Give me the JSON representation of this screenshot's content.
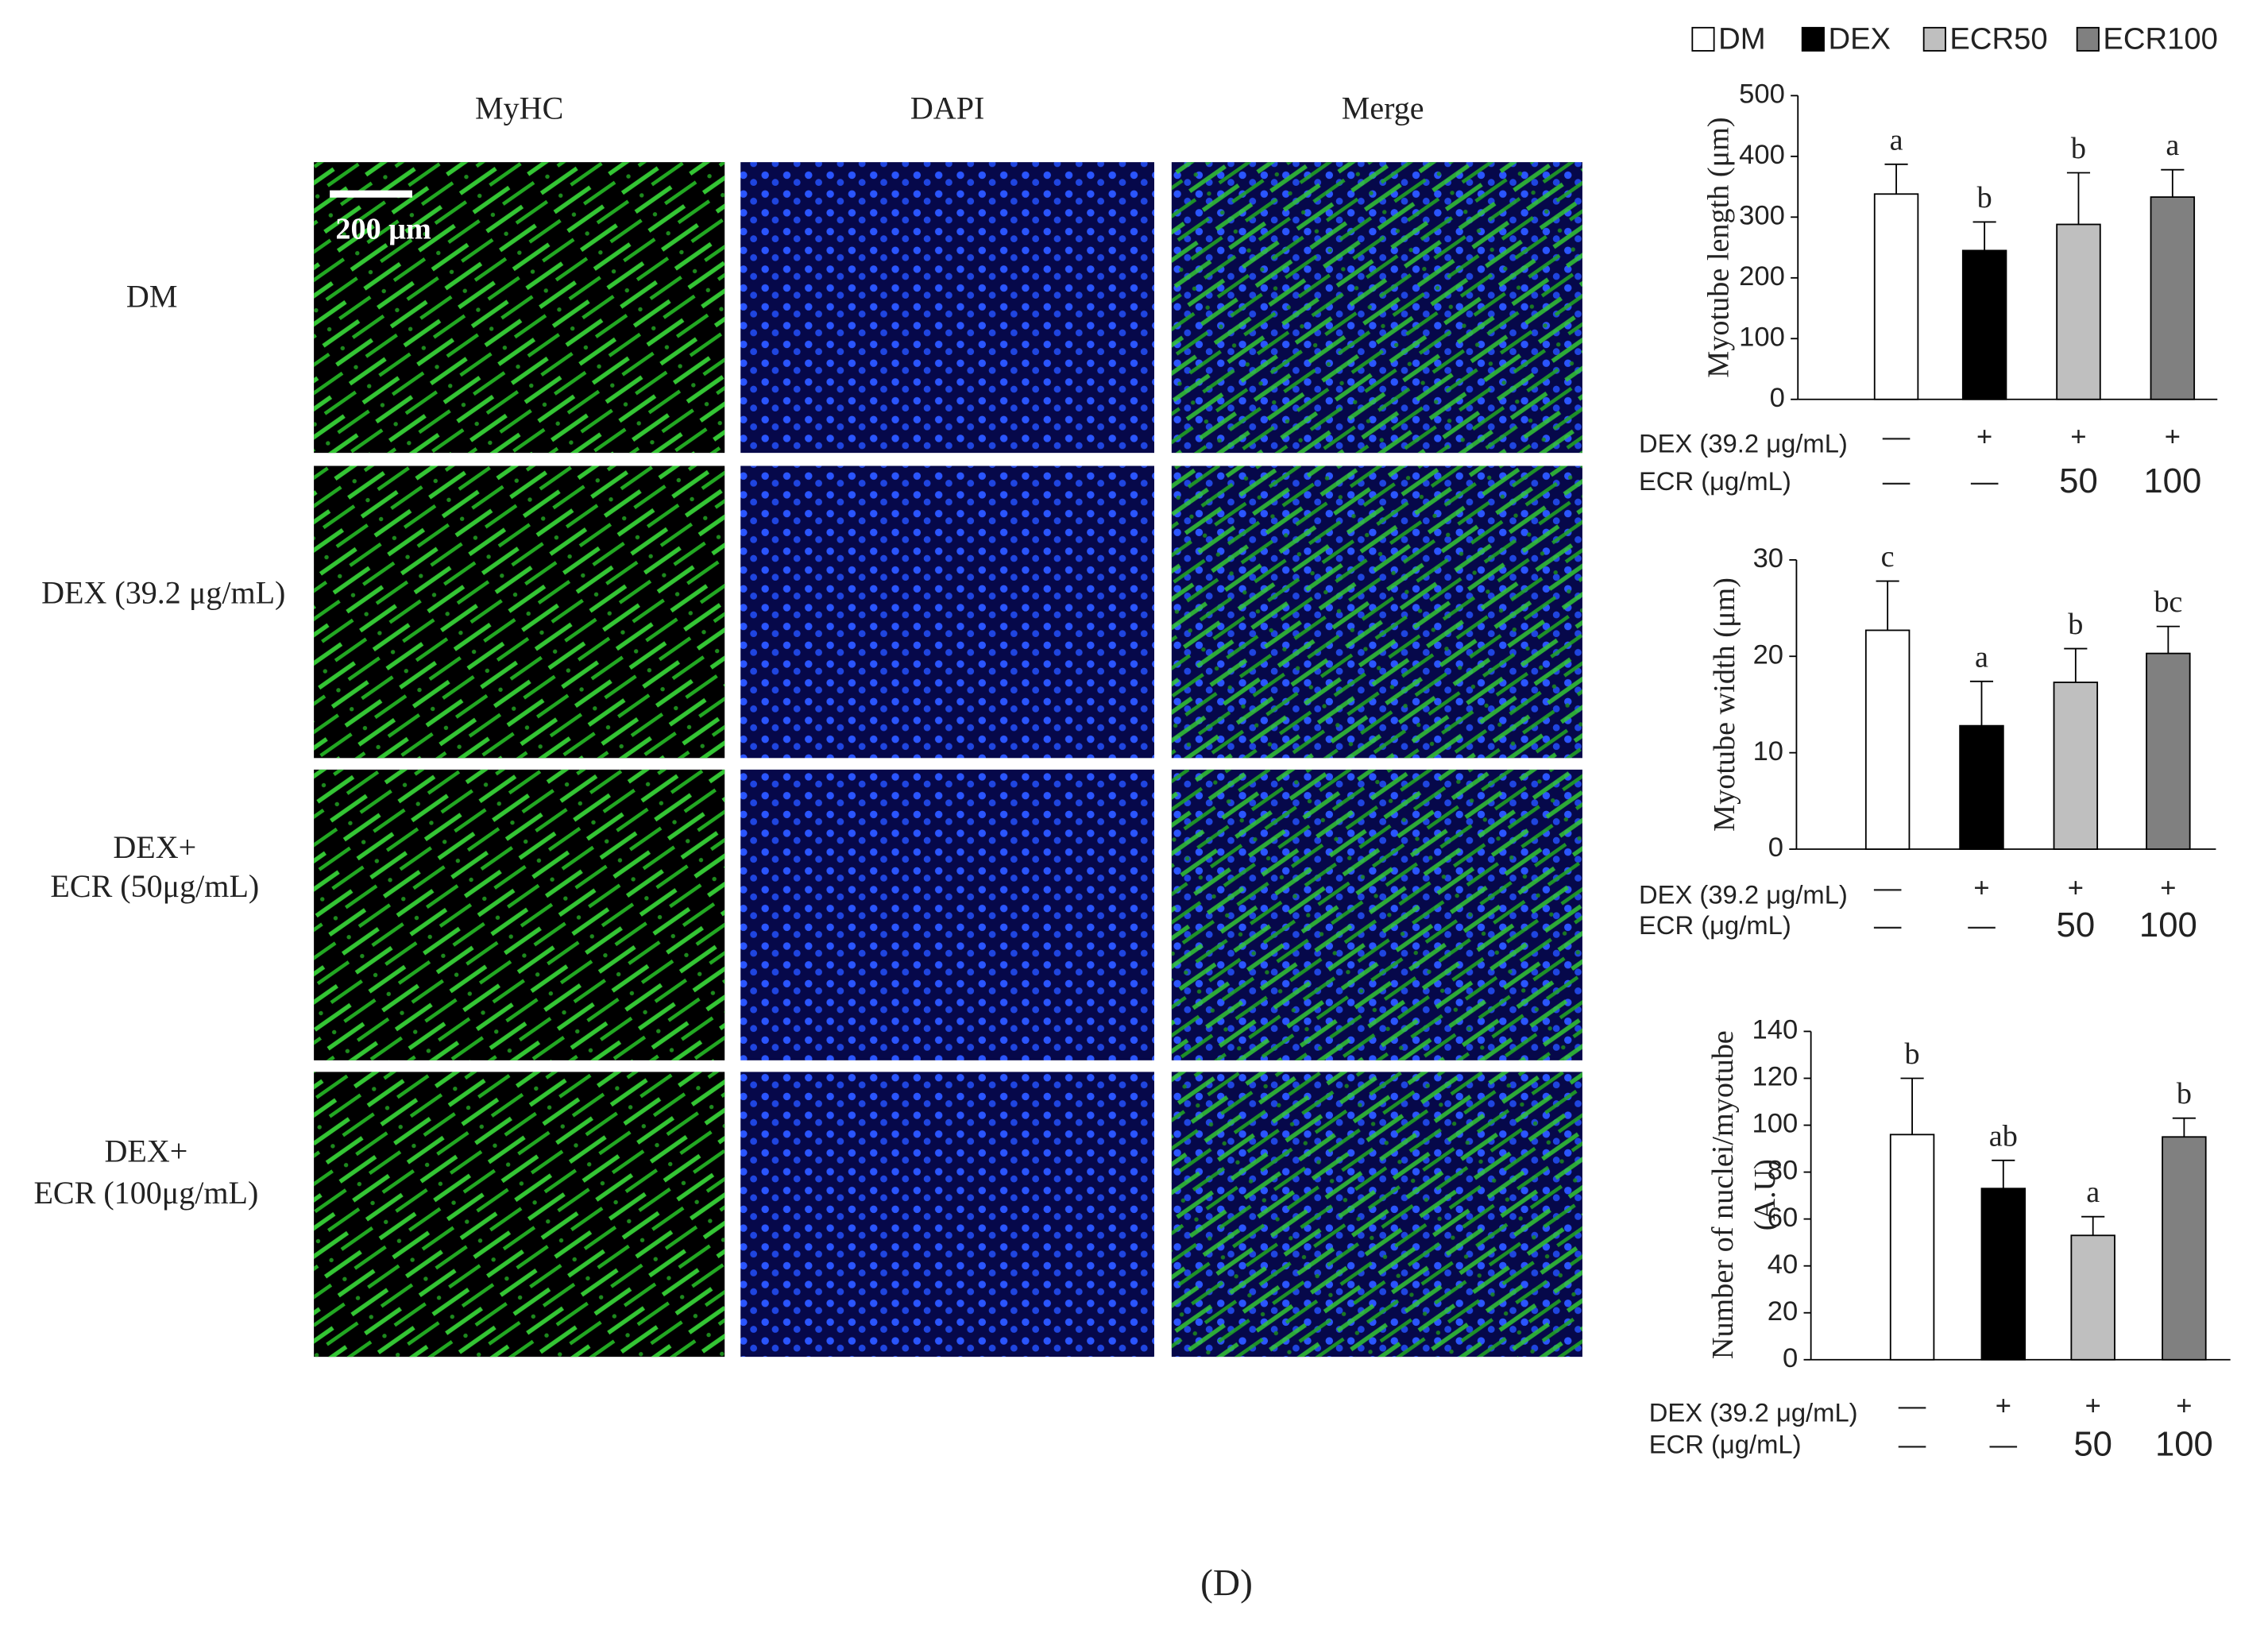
{
  "panel_label": "(D)",
  "images": {
    "columns": [
      "MyHC",
      "DAPI",
      "Merge"
    ],
    "rows": [
      [
        "DM"
      ],
      [
        "DEX (39.2 μg/mL)"
      ],
      [
        "DEX+",
        "ECR (50μg/mL)"
      ],
      [
        "DEX+",
        "ECR (100μg/mL)"
      ]
    ],
    "scale_bar": "200 μm"
  },
  "legend": [
    {
      "name": "DM",
      "color": "#ffffff"
    },
    {
      "name": "DEX",
      "color": "#000000"
    },
    {
      "name": "ECR50",
      "color": "#bfbfbf"
    },
    {
      "name": "ECR100",
      "color": "#808080"
    }
  ],
  "chart_data": [
    {
      "type": "bar",
      "ylabel": [
        "Myotube length (μm)"
      ],
      "ylim": [
        0,
        500
      ],
      "yticks": [
        0,
        100,
        200,
        300,
        400,
        500
      ],
      "values": [
        338,
        245,
        288,
        333
      ],
      "errors": [
        49,
        47,
        85,
        45
      ],
      "annotations": [
        "a",
        "b",
        "b",
        "a"
      ],
      "treatments": [
        {
          "label": "DEX (39.2 μg/mL)",
          "cells": [
            "—",
            "+",
            "+",
            "+"
          ]
        },
        {
          "label": "ECR (μg/mL)",
          "cells": [
            "—",
            "—",
            "50",
            "100"
          ]
        }
      ]
    },
    {
      "type": "bar",
      "ylabel": [
        "Myotube width (μm)"
      ],
      "ylim": [
        0,
        30
      ],
      "yticks": [
        0,
        10,
        20,
        30
      ],
      "values": [
        22.7,
        12.8,
        17.3,
        20.3
      ],
      "errors": [
        5.1,
        4.6,
        3.5,
        2.8
      ],
      "annotations": [
        "c",
        "a",
        "b",
        "bc"
      ],
      "treatments": [
        {
          "label": "DEX (39.2 μg/mL)",
          "cells": [
            "—",
            "+",
            "+",
            "+"
          ]
        },
        {
          "label": "ECR (μg/mL)",
          "cells": [
            "—",
            "—",
            "50",
            "100"
          ]
        }
      ]
    },
    {
      "type": "bar",
      "ylabel": [
        "Number of nuclei/myotube",
        "(A.U)"
      ],
      "ylim": [
        0,
        140
      ],
      "yticks": [
        0,
        20,
        40,
        60,
        80,
        100,
        120,
        140
      ],
      "values": [
        96,
        73,
        53,
        95
      ],
      "errors": [
        24,
        12,
        8,
        8
      ],
      "annotations": [
        "b",
        "ab",
        "a",
        "b"
      ],
      "treatments": [
        {
          "label": "DEX (39.2 μg/mL)",
          "cells": [
            "—",
            "+",
            "+",
            "+"
          ]
        },
        {
          "label": "ECR (μg/mL)",
          "cells": [
            "—",
            "—",
            "50",
            "100"
          ]
        }
      ]
    }
  ]
}
